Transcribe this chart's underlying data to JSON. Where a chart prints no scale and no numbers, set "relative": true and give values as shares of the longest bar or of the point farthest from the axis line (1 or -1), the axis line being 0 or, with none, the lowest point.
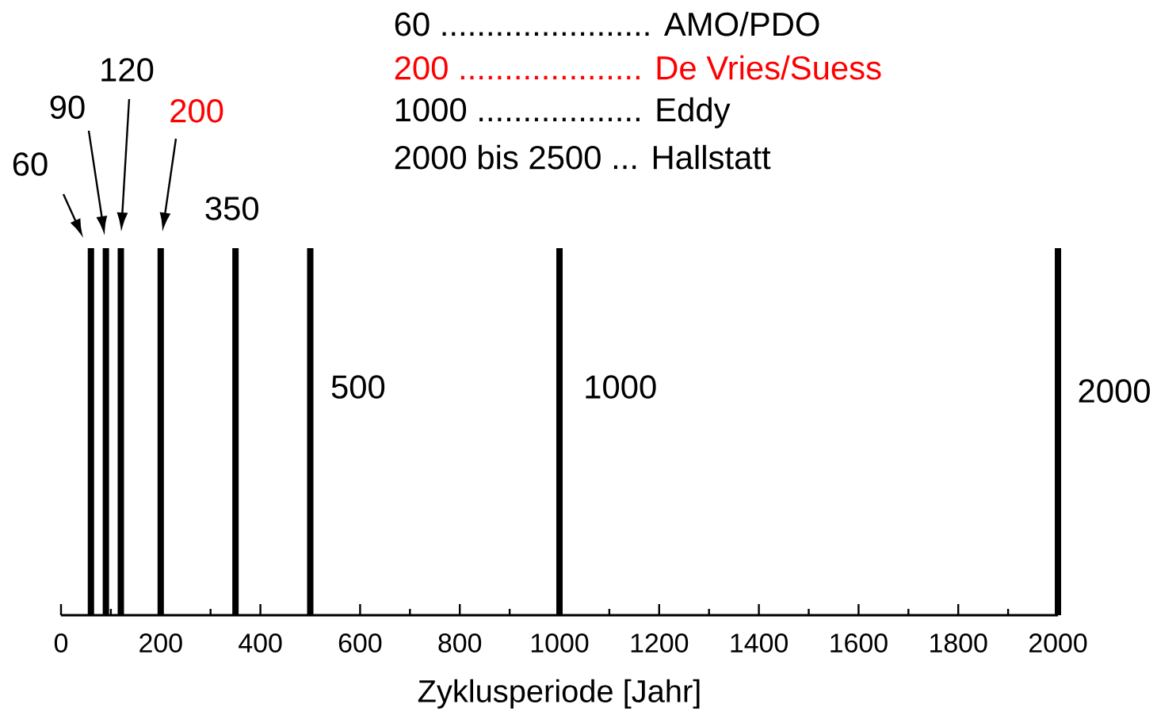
{
  "chart_data": {
    "type": "bar",
    "relative": true,
    "xlabel": "Zyklusperiode [Jahr]",
    "x": [
      60,
      90,
      120,
      200,
      350,
      500,
      1000,
      2000
    ],
    "values": [
      1,
      1,
      1,
      1,
      1,
      1,
      1,
      1
    ],
    "color": "#000000",
    "xlim": [
      0,
      2000
    ],
    "xticks": [
      0,
      {
        "value": 100,
        "label": null
      },
      200,
      {
        "value": 300,
        "label": null
      },
      400,
      {
        "value": 500,
        "label": null
      },
      600,
      {
        "value": 700,
        "label": null
      },
      800,
      {
        "value": 900,
        "label": null
      },
      1000,
      {
        "value": 1100,
        "label": null
      },
      1200,
      {
        "value": 1300,
        "label": null
      },
      1400,
      {
        "value": 1500,
        "label": null
      },
      1600,
      {
        "value": 1700,
        "label": null
      },
      1800,
      {
        "value": 1900,
        "label": null
      },
      2000
    ],
    "annotations": [
      "60 ....................... AMO/PDO",
      "200 .................... De Vries/Suess",
      "1000 .................. Eddy",
      "2000 bis 2500 ... Hallstatt",
      "60",
      "90",
      "120",
      "200",
      "350",
      "500",
      "1000",
      "2000"
    ]
  }
}
